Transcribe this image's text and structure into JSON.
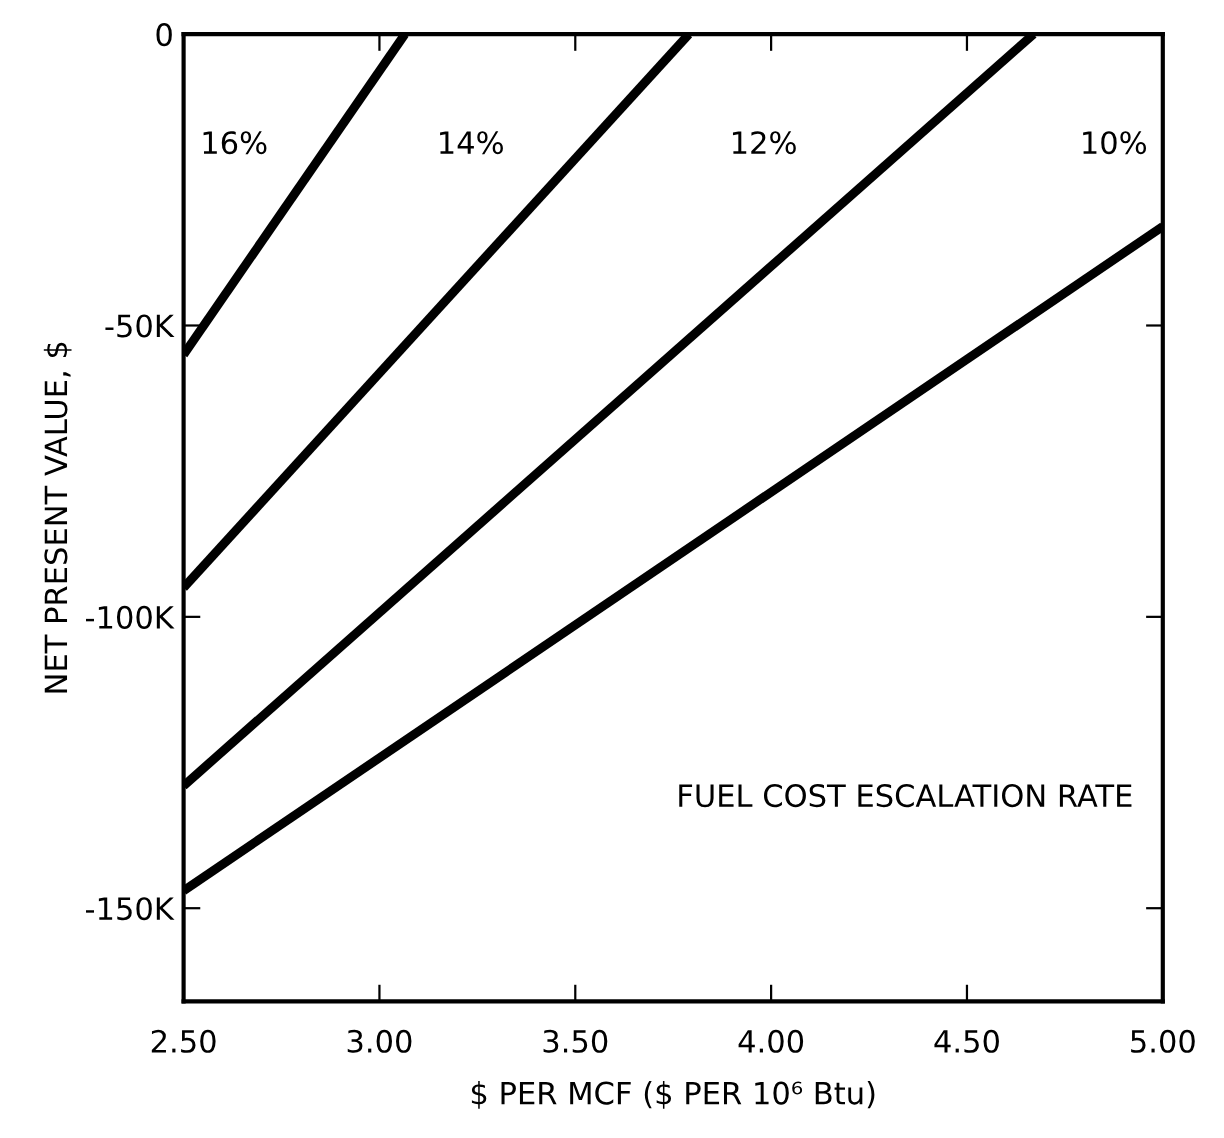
{
  "chart_data": {
    "type": "line",
    "xlabel": "$ PER MCF ($ PER 10⁶ Btu)",
    "ylabel": "NET PRESENT VALUE, $",
    "xlim": [
      2.5,
      5.0
    ],
    "ylim": [
      -166000,
      0
    ],
    "xticks": [
      {
        "value": 2.5,
        "label": "2.50"
      },
      {
        "value": 3.0,
        "label": "3.00"
      },
      {
        "value": 3.5,
        "label": "3.50"
      },
      {
        "value": 4.0,
        "label": "4.00"
      },
      {
        "value": 4.5,
        "label": "4.50"
      },
      {
        "value": 5.0,
        "label": "5.00"
      }
    ],
    "yticks": [
      {
        "value": -150000,
        "label": "-150K"
      },
      {
        "value": -100000,
        "label": "-100K"
      },
      {
        "value": -50000,
        "label": "-50K"
      },
      0
    ],
    "grid": false,
    "legend": false,
    "series": [
      {
        "name": "16%",
        "color": "#000000",
        "x": [
          2.5,
          3.065
        ],
        "values": [
          -55000,
          0
        ]
      },
      {
        "name": "14%",
        "color": "#000000",
        "x": [
          2.5,
          3.79
        ],
        "values": [
          -95000,
          0
        ]
      },
      {
        "name": "12%",
        "color": "#000000",
        "x": [
          2.5,
          4.67
        ],
        "values": [
          -129000,
          0
        ]
      },
      {
        "name": "10%",
        "color": "#000000",
        "x": [
          2.5,
          5.0
        ],
        "values": [
          -147000,
          -33000
        ]
      }
    ],
    "annotations": [
      "FUEL COST ESCALATION RATE"
    ]
  }
}
